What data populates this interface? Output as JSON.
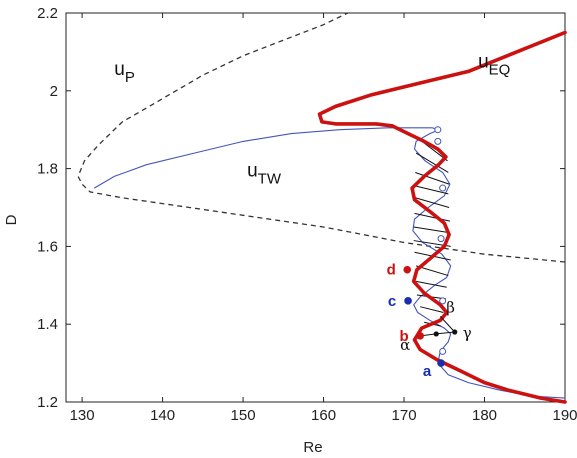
{
  "chart_data": {
    "type": "line",
    "xlabel": "Re",
    "ylabel": "D",
    "xlim": [
      128,
      190
    ],
    "ylim": [
      1.2,
      2.2
    ],
    "x_ticks": [
      "130",
      "140",
      "150",
      "160",
      "170",
      "180",
      "190"
    ],
    "y_ticks": [
      "1.2",
      "1.4",
      "1.6",
      "1.8",
      "2",
      "2.2"
    ],
    "grid": false,
    "colors": {
      "eq": "#cc1111",
      "tw": "#4455bb",
      "p": "#333333",
      "points_blue": "#1a2db0",
      "points_red": "#cc1111"
    },
    "series": [
      {
        "name": "u_P",
        "label_main": "u",
        "label_sub": "P",
        "style": "dashed",
        "points": [
          [
            190,
            1.56
          ],
          [
            185,
            1.57
          ],
          [
            180,
            1.58
          ],
          [
            170,
            1.61
          ],
          [
            165,
            1.63
          ],
          [
            160,
            1.65
          ],
          [
            150,
            1.68
          ],
          [
            140,
            1.71
          ],
          [
            135,
            1.725
          ],
          [
            131,
            1.74
          ],
          [
            130,
            1.76
          ],
          [
            129.5,
            1.78
          ],
          [
            130.3,
            1.82
          ],
          [
            132,
            1.86
          ],
          [
            135,
            1.92
          ],
          [
            140,
            1.98
          ],
          [
            145,
            2.04
          ],
          [
            150,
            2.09
          ],
          [
            155,
            2.13
          ],
          [
            160,
            2.17
          ],
          [
            163,
            2.2
          ]
        ]
      },
      {
        "name": "u_EQ",
        "label_main": "u",
        "label_sub": "EQ",
        "style": "thick",
        "points": [
          [
            190,
            1.2
          ],
          [
            187,
            1.21
          ],
          [
            183,
            1.23
          ],
          [
            180,
            1.25
          ],
          [
            177,
            1.28
          ],
          [
            174,
            1.31
          ],
          [
            172,
            1.335
          ],
          [
            171.3,
            1.36
          ],
          [
            172.2,
            1.39
          ],
          [
            174.5,
            1.41
          ],
          [
            175.3,
            1.43
          ],
          [
            174.5,
            1.45
          ],
          [
            172.5,
            1.48
          ],
          [
            171.2,
            1.51
          ],
          [
            171.6,
            1.54
          ],
          [
            173.3,
            1.57
          ],
          [
            175,
            1.6
          ],
          [
            175.6,
            1.63
          ],
          [
            175,
            1.66
          ],
          [
            173.2,
            1.69
          ],
          [
            171.3,
            1.72
          ],
          [
            171,
            1.75
          ],
          [
            172.5,
            1.78
          ],
          [
            174.3,
            1.81
          ],
          [
            175.2,
            1.83
          ],
          [
            174.2,
            1.85
          ],
          [
            172.5,
            1.87
          ],
          [
            170.5,
            1.89
          ],
          [
            168.5,
            1.91
          ],
          [
            166.5,
            1.915
          ],
          [
            164,
            1.915
          ],
          [
            161.5,
            1.915
          ],
          [
            159.8,
            1.92
          ],
          [
            159.5,
            1.94
          ],
          [
            161.5,
            1.96
          ],
          [
            166,
            1.99
          ],
          [
            172,
            2.02
          ],
          [
            178,
            2.05
          ],
          [
            184,
            2.1
          ],
          [
            190,
            2.15
          ]
        ]
      },
      {
        "name": "u_TW",
        "label_main": "u",
        "label_sub": "TW",
        "style": "thin",
        "points": [
          [
            190,
            1.21
          ],
          [
            186,
            1.215
          ],
          [
            182,
            1.23
          ],
          [
            178,
            1.25
          ],
          [
            175.5,
            1.27
          ],
          [
            174.2,
            1.3
          ],
          [
            174.5,
            1.33
          ],
          [
            175.5,
            1.355
          ],
          [
            175.8,
            1.375
          ],
          [
            175,
            1.39
          ],
          [
            173.2,
            1.41
          ],
          [
            171.7,
            1.43
          ],
          [
            171.2,
            1.45
          ],
          [
            172,
            1.47
          ],
          [
            173.8,
            1.5
          ],
          [
            175.3,
            1.52
          ],
          [
            175.8,
            1.55
          ],
          [
            174.7,
            1.58
          ],
          [
            172.3,
            1.61
          ],
          [
            171.1,
            1.64
          ],
          [
            171.3,
            1.67
          ],
          [
            173,
            1.7
          ],
          [
            175,
            1.73
          ],
          [
            175.7,
            1.76
          ],
          [
            174.8,
            1.79
          ],
          [
            172.6,
            1.82
          ],
          [
            171.3,
            1.85
          ],
          [
            171.5,
            1.87
          ],
          [
            173.2,
            1.89
          ],
          [
            174.4,
            1.9
          ],
          [
            173.5,
            1.905
          ],
          [
            168,
            1.905
          ],
          [
            162,
            1.9
          ],
          [
            156,
            1.89
          ],
          [
            150,
            1.87
          ],
          [
            144,
            1.84
          ],
          [
            138,
            1.81
          ],
          [
            134,
            1.78
          ],
          [
            131.5,
            1.75
          ]
        ]
      },
      {
        "name": "hatching",
        "style": "thin-black",
        "segments": [
          [
            [
              175.4,
              1.82
            ],
            [
              171.6,
              1.88
            ]
          ],
          [
            [
              175.5,
              1.79
            ],
            [
              171.5,
              1.84
            ]
          ],
          [
            [
              175.6,
              1.76
            ],
            [
              171.4,
              1.79
            ]
          ],
          [
            [
              175.5,
              1.735
            ],
            [
              171.5,
              1.755
            ]
          ],
          [
            [
              175.6,
              1.7
            ],
            [
              171.4,
              1.725
            ]
          ],
          [
            [
              175.7,
              1.665
            ],
            [
              171.3,
              1.685
            ]
          ],
          [
            [
              175.7,
              1.635
            ],
            [
              171.2,
              1.65
            ]
          ],
          [
            [
              175.8,
              1.6
            ],
            [
              171.2,
              1.615
            ]
          ],
          [
            [
              175.8,
              1.565
            ],
            [
              171.3,
              1.585
            ]
          ],
          [
            [
              175.5,
              1.525
            ],
            [
              171.5,
              1.55
            ]
          ],
          [
            [
              175.3,
              1.495
            ],
            [
              171.5,
              1.51
            ]
          ],
          [
            [
              175.2,
              1.465
            ],
            [
              171.6,
              1.475
            ]
          ],
          [
            [
              174.9,
              1.43
            ],
            [
              172,
              1.445
            ]
          ],
          [
            [
              174.6,
              1.395
            ],
            [
              172.5,
              1.405
            ]
          ]
        ]
      },
      {
        "name": "branch",
        "style": "thin-black",
        "points": [
          [
            172,
            1.37
          ],
          [
            174,
            1.375
          ],
          [
            176.3,
            1.38
          ],
          [
            174.5,
            1.42
          ]
        ]
      }
    ],
    "open_circles": [
      [
        174.8,
        1.33
      ],
      [
        174.8,
        1.46
      ],
      [
        174.6,
        1.62
      ],
      [
        174.8,
        1.75
      ],
      [
        174.2,
        1.87
      ],
      [
        174.2,
        1.9
      ]
    ],
    "points": [
      {
        "label": "a",
        "x": 174.6,
        "y": 1.3,
        "color": "blue",
        "label_dx": -14,
        "label_dy": 8
      },
      {
        "label": "b",
        "x": 172.0,
        "y": 1.37,
        "color": "red",
        "label_dx": -16,
        "label_dy": 0
      },
      {
        "label": "c",
        "x": 170.5,
        "y": 1.46,
        "color": "blue",
        "label_dx": -16,
        "label_dy": 0
      },
      {
        "label": "d",
        "x": 170.4,
        "y": 1.54,
        "color": "red",
        "label_dx": -16,
        "label_dy": 0
      }
    ],
    "greek_points": [
      {
        "label": "α",
        "x": 172.0,
        "y": 1.37,
        "dx": -20,
        "dy": 14
      },
      {
        "label": "β",
        "x": 174.5,
        "y": 1.42,
        "dx": 6,
        "dy": -4
      },
      {
        "label": "γ",
        "x": 176.3,
        "y": 1.38,
        "dx": 8,
        "dy": 6
      }
    ],
    "curve_labels": [
      {
        "series": "u_P",
        "x": 134,
        "y": 2.04
      },
      {
        "series": "u_TW",
        "x": 150.5,
        "y": 1.78
      },
      {
        "series": "u_EQ",
        "x": 179.2,
        "y": 2.06
      }
    ]
  }
}
